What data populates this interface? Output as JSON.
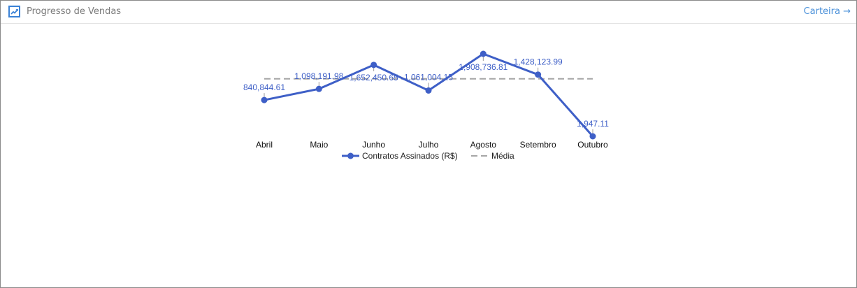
{
  "header": {
    "icon": "trending-up-chart-icon",
    "title": "Progresso de Vendas",
    "link_label": "Carteira →"
  },
  "colors": {
    "series": "#3e5fc7",
    "average": "#a6a6a6",
    "link": "#4a90d9",
    "icon": "#3b82d6"
  },
  "chart_data": {
    "type": "line",
    "title": "Progresso de Vendas",
    "xlabel": "",
    "ylabel": "",
    "categories": [
      "Abril",
      "Maio",
      "Junho",
      "Julho",
      "Agosto",
      "Setembro",
      "Outubro"
    ],
    "series": [
      {
        "name": "Contratos Assinados (R$)",
        "values": [
          840844.61,
          1098191.98,
          1652450.65,
          1061004.15,
          1908736.81,
          1428123.99,
          1947.11
        ],
        "labels": [
          "840,844.61",
          "1,098,191.98",
          "1,652,450.65",
          "1,061,004.15",
          "1,908,736.81",
          "1,428,123.99",
          "1,947.11"
        ],
        "style": "solid-with-markers"
      },
      {
        "name": "Média",
        "values": [
          1331558.7,
          1331558.7,
          1331558.7,
          1331558.7,
          1331558.7,
          1331558.7,
          1331558.7
        ],
        "style": "dashed"
      }
    ],
    "legend": {
      "position": "bottom",
      "entries": [
        "Contratos Assinados (R$)",
        "Média"
      ]
    },
    "grid": false,
    "y_axis_visible": false
  }
}
